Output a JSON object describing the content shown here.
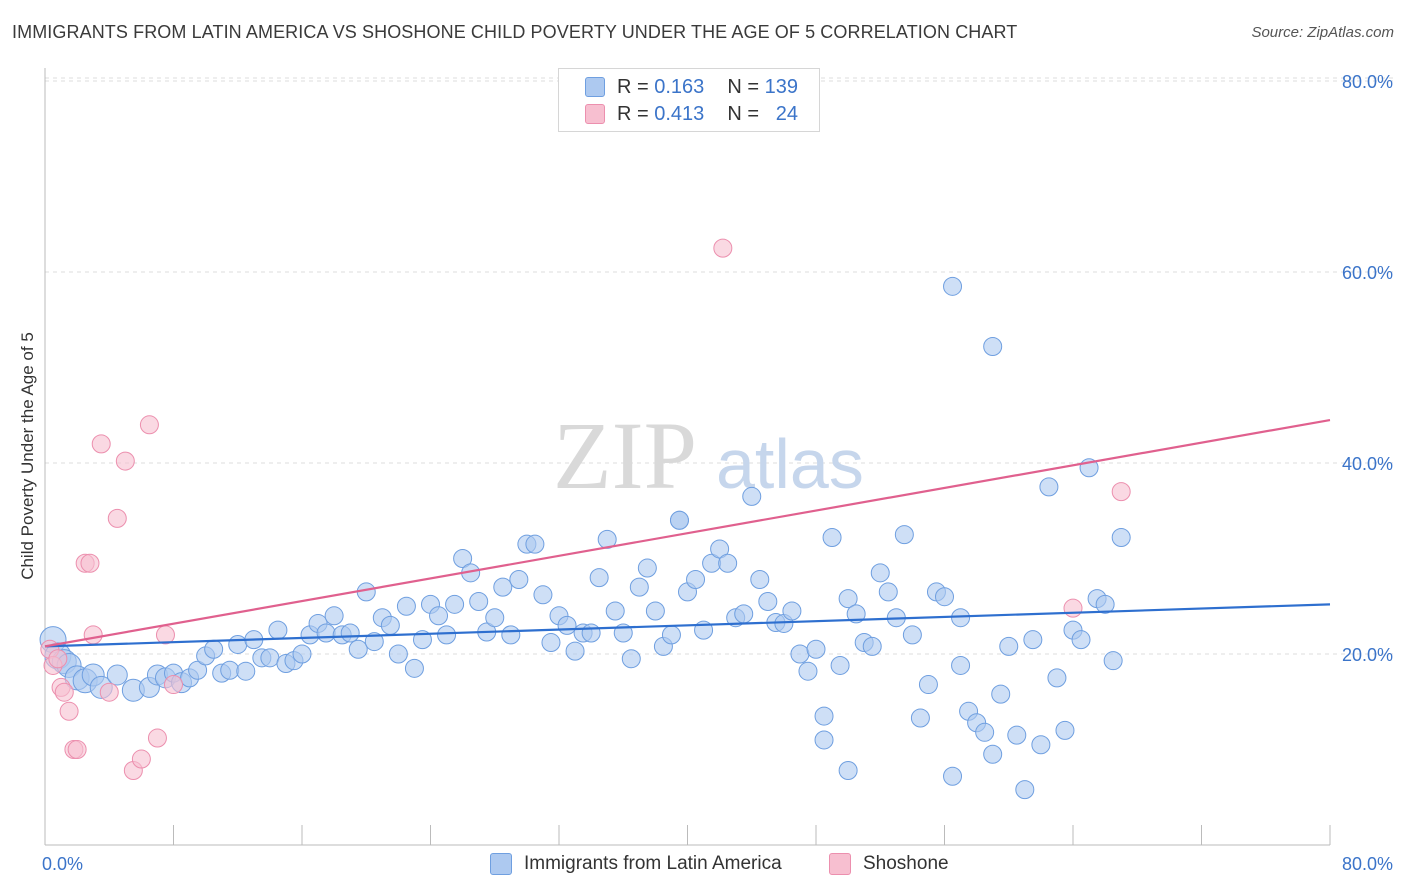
{
  "title": "IMMIGRANTS FROM LATIN AMERICA VS SHOSHONE CHILD POVERTY UNDER THE AGE OF 5 CORRELATION CHART",
  "source": "Source: ZipAtlas.com",
  "watermark": {
    "zip": "ZIP",
    "atlas": "atlas"
  },
  "legend": {
    "rows": [
      {
        "r_label": "R =",
        "r_value": "0.163",
        "n_label": "N =",
        "n_value": "139"
      },
      {
        "r_label": "R =",
        "r_value": "0.413",
        "n_label": "N =",
        "n_value": "24"
      }
    ]
  },
  "bottom_legend": {
    "series1": "Immigrants from Latin America",
    "series2": "Shoshone"
  },
  "colors": {
    "blue_fill": "#adc9f0",
    "blue_stroke": "#6f9fe0",
    "blue_line": "#2e6fcf",
    "pink_fill": "#f7bfd0",
    "pink_stroke": "#ec8fae",
    "pink_line": "#e0608e",
    "tick": "#3b74c9"
  },
  "chart_data": {
    "type": "scatter",
    "title": "IMMIGRANTS FROM LATIN AMERICA VS SHOSHONE CHILD POVERTY UNDER THE AGE OF 5 CORRELATION CHART",
    "xlabel": "",
    "ylabel": "Child Poverty Under the Age of 5",
    "xlim": [
      0,
      80
    ],
    "ylim": [
      0,
      83
    ],
    "x_tick_labels": [
      "0.0%",
      "80.0%"
    ],
    "y_ticks": [
      20,
      40,
      60,
      80
    ],
    "y_tick_labels": [
      "20.0%",
      "40.0%",
      "60.0%",
      "80.0%"
    ],
    "grid": true,
    "legend_position": "top-center",
    "series": [
      {
        "name": "Immigrants from Latin America",
        "color": "#6f9fe0",
        "trend": {
          "x": [
            0,
            80
          ],
          "y": [
            20.8,
            25.2
          ]
        },
        "points": [
          [
            0.5,
            21.5,
            13
          ],
          [
            0.8,
            19.8,
            13
          ],
          [
            1.2,
            19.2,
            12
          ],
          [
            1.5,
            18.8,
            12
          ],
          [
            2.0,
            17.5,
            12
          ],
          [
            2.5,
            17.2,
            12
          ],
          [
            3.0,
            17.8,
            11
          ],
          [
            3.5,
            16.5,
            11
          ],
          [
            4.5,
            17.8,
            10
          ],
          [
            5.5,
            16.2,
            11
          ],
          [
            6.5,
            16.5,
            10
          ],
          [
            7.0,
            17.8,
            10
          ],
          [
            7.5,
            17.5,
            10
          ],
          [
            8.0,
            18.0,
            9
          ],
          [
            8.5,
            17.0,
            10
          ],
          [
            9.0,
            17.5,
            9
          ],
          [
            9.5,
            18.3,
            9
          ],
          [
            10.0,
            19.8,
            9
          ],
          [
            10.5,
            20.5,
            9
          ],
          [
            11.0,
            18.0,
            9
          ],
          [
            11.5,
            18.3,
            9
          ],
          [
            12.0,
            21.0,
            9
          ],
          [
            12.5,
            18.2,
            9
          ],
          [
            13.0,
            21.5,
            9
          ],
          [
            13.5,
            19.6,
            9
          ],
          [
            14.0,
            19.6,
            9
          ],
          [
            14.5,
            22.5,
            9
          ],
          [
            15.0,
            19.0,
            9
          ],
          [
            15.5,
            19.3,
            9
          ],
          [
            16.0,
            20.0,
            9
          ],
          [
            16.5,
            22.0,
            9
          ],
          [
            17.0,
            23.2,
            9
          ],
          [
            17.5,
            22.2,
            9
          ],
          [
            18.0,
            24.0,
            9
          ],
          [
            18.5,
            22.0,
            9
          ],
          [
            19.0,
            22.2,
            9
          ],
          [
            19.5,
            20.5,
            9
          ],
          [
            20.0,
            26.5,
            9
          ],
          [
            20.5,
            21.3,
            9
          ],
          [
            21.0,
            23.8,
            9
          ],
          [
            21.5,
            23.0,
            9
          ],
          [
            22.0,
            20.0,
            9
          ],
          [
            22.5,
            25.0,
            9
          ],
          [
            23.0,
            18.5,
            9
          ],
          [
            23.5,
            21.5,
            9
          ],
          [
            24.0,
            25.2,
            9
          ],
          [
            24.5,
            24.0,
            9
          ],
          [
            25.0,
            22.0,
            9
          ],
          [
            25.5,
            25.2,
            9
          ],
          [
            26.0,
            30.0,
            9
          ],
          [
            26.5,
            28.5,
            9
          ],
          [
            27.0,
            25.5,
            9
          ],
          [
            27.5,
            22.3,
            9
          ],
          [
            28.0,
            23.8,
            9
          ],
          [
            28.5,
            27.0,
            9
          ],
          [
            29.0,
            22.0,
            9
          ],
          [
            29.5,
            27.8,
            9
          ],
          [
            30.0,
            31.5,
            9
          ],
          [
            30.5,
            31.5,
            9
          ],
          [
            31.0,
            26.2,
            9
          ],
          [
            31.5,
            21.2,
            9
          ],
          [
            32.0,
            24.0,
            9
          ],
          [
            32.5,
            23.0,
            9
          ],
          [
            33.0,
            20.3,
            9
          ],
          [
            33.5,
            22.2,
            9
          ],
          [
            34.0,
            22.2,
            9
          ],
          [
            34.5,
            28.0,
            9
          ],
          [
            35.0,
            32.0,
            9
          ],
          [
            35.5,
            24.5,
            9
          ],
          [
            36.0,
            22.2,
            9
          ],
          [
            36.5,
            19.5,
            9
          ],
          [
            37.0,
            27.0,
            9
          ],
          [
            37.5,
            29.0,
            9
          ],
          [
            38.0,
            24.5,
            9
          ],
          [
            38.5,
            20.8,
            9
          ],
          [
            39.0,
            22.0,
            9
          ],
          [
            39.5,
            34.0,
            9
          ],
          [
            40.0,
            26.5,
            9
          ],
          [
            40.5,
            27.8,
            9
          ],
          [
            41.0,
            22.5,
            9
          ],
          [
            41.5,
            29.5,
            9
          ],
          [
            42.0,
            31.0,
            9
          ],
          [
            42.5,
            29.5,
            9
          ],
          [
            43.0,
            23.8,
            9
          ],
          [
            43.5,
            24.2,
            9
          ],
          [
            44.0,
            36.5,
            9
          ],
          [
            44.5,
            27.8,
            9
          ],
          [
            45.0,
            25.5,
            9
          ],
          [
            45.5,
            23.3,
            9
          ],
          [
            46.0,
            23.2,
            9
          ],
          [
            46.5,
            24.5,
            9
          ],
          [
            47.0,
            20.0,
            9
          ],
          [
            47.5,
            18.2,
            9
          ],
          [
            48.0,
            20.5,
            9
          ],
          [
            48.5,
            13.5,
            9
          ],
          [
            49.0,
            32.2,
            9
          ],
          [
            49.5,
            18.8,
            9
          ],
          [
            50.0,
            25.8,
            9
          ],
          [
            50.5,
            24.2,
            9
          ],
          [
            51.0,
            21.2,
            9
          ],
          [
            51.5,
            20.8,
            9
          ],
          [
            52.0,
            28.5,
            9
          ],
          [
            52.5,
            26.5,
            9
          ],
          [
            53.0,
            23.8,
            9
          ],
          [
            53.5,
            32.5,
            9
          ],
          [
            54.0,
            22.0,
            9
          ],
          [
            54.5,
            13.3,
            9
          ],
          [
            55.0,
            16.8,
            9
          ],
          [
            55.5,
            26.5,
            9
          ],
          [
            56.0,
            26.0,
            9
          ],
          [
            56.5,
            7.2,
            9
          ],
          [
            57.0,
            23.8,
            9
          ],
          [
            57.5,
            14.0,
            9
          ],
          [
            58.0,
            12.8,
            9
          ],
          [
            58.5,
            11.8,
            9
          ],
          [
            59.0,
            9.5,
            9
          ],
          [
            59.5,
            15.8,
            9
          ],
          [
            60.0,
            20.8,
            9
          ],
          [
            60.5,
            11.5,
            9
          ],
          [
            61.0,
            5.8,
            9
          ],
          [
            61.5,
            21.5,
            9
          ],
          [
            62.0,
            10.5,
            9
          ],
          [
            62.5,
            37.5,
            9
          ],
          [
            63.0,
            17.5,
            9
          ],
          [
            63.5,
            12.0,
            9
          ],
          [
            64.0,
            22.5,
            9
          ],
          [
            64.5,
            21.5,
            9
          ],
          [
            65.0,
            39.5,
            9
          ],
          [
            65.5,
            25.8,
            9
          ],
          [
            66.0,
            25.2,
            9
          ],
          [
            66.5,
            19.3,
            9
          ],
          [
            67.0,
            32.2,
            9
          ],
          [
            56.5,
            58.5,
            9
          ],
          [
            59.0,
            52.2,
            9
          ],
          [
            39.5,
            34.0,
            9
          ],
          [
            50.0,
            7.8,
            9
          ],
          [
            57.0,
            18.8,
            9
          ],
          [
            48.5,
            11.0,
            9
          ]
        ]
      },
      {
        "name": "Shoshone",
        "color": "#ec8fae",
        "trend": {
          "x": [
            0,
            80
          ],
          "y": [
            20.8,
            44.5
          ]
        },
        "points": [
          [
            0.3,
            20.5,
            9
          ],
          [
            0.5,
            18.8,
            9
          ],
          [
            0.8,
            19.5,
            9
          ],
          [
            1.0,
            16.5,
            9
          ],
          [
            1.2,
            16.0,
            9
          ],
          [
            1.5,
            14.0,
            9
          ],
          [
            1.8,
            10.0,
            9
          ],
          [
            2.0,
            10.0,
            9
          ],
          [
            2.5,
            29.5,
            9
          ],
          [
            2.8,
            29.5,
            9
          ],
          [
            3.0,
            22.0,
            9
          ],
          [
            3.5,
            42.0,
            9
          ],
          [
            4.0,
            16.0,
            9
          ],
          [
            4.5,
            34.2,
            9
          ],
          [
            5.0,
            40.2,
            9
          ],
          [
            5.5,
            7.8,
            9
          ],
          [
            6.0,
            9.0,
            9
          ],
          [
            6.5,
            44.0,
            9
          ],
          [
            7.0,
            11.2,
            9
          ],
          [
            7.5,
            22.0,
            9
          ],
          [
            8.0,
            16.8,
            9
          ],
          [
            42.2,
            62.5,
            9
          ],
          [
            64.0,
            24.8,
            9
          ],
          [
            67.0,
            37.0,
            9
          ]
        ]
      }
    ]
  }
}
